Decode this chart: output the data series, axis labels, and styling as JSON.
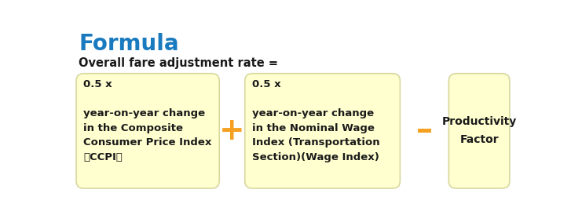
{
  "title": "Formula",
  "title_color": "#1a7abf",
  "subtitle": "Overall fare adjustment rate =",
  "subtitle_color": "#1a1a1a",
  "box_fill_color": "#ffffd0",
  "box_edge_color": "#d8d8a0",
  "box1_text": "0.5 x\n\nyear-on-year change\nin the Composite\nConsumer Price Index\n（CCPI）",
  "box2_text": "0.5 x\n\nyear-on-year change\nin the Nominal Wage\nIndex (Transportation\nSection)(Wage Index)",
  "box3_text": "Productivity\nFactor",
  "operator1": "+",
  "operator2": "–",
  "operator_color": "#f5a020",
  "text_color": "#1a1a1a",
  "background_color": "#ffffff",
  "font_size_title": 20,
  "font_size_subtitle": 10.5,
  "font_size_box": 9.5,
  "font_size_operator": 28
}
